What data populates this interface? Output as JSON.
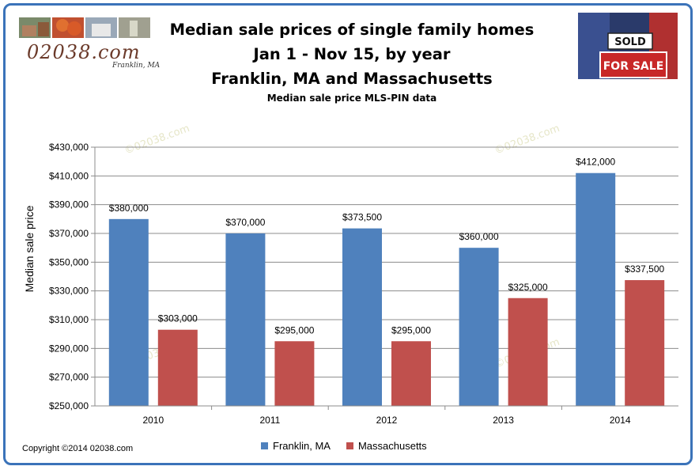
{
  "branding": {
    "logo_text": "02038.com",
    "logo_subtext": "Franklin, MA",
    "sign_text_top": "SOLD",
    "sign_text_bottom": "FOR SALE"
  },
  "header": {
    "title_line1": "Median sale prices of single family homes",
    "title_line2": "Jan 1 - Nov 15, by year",
    "title_line3": "Franklin, MA and Massachusetts",
    "subtitle": "Median sale price MLS-PIN data"
  },
  "footer": {
    "copyright": "Copyright ©2014 02038.com"
  },
  "watermark": "©02038.com",
  "colors": {
    "frame": "#3b73b9",
    "franklin": "#4f81bd",
    "massachusetts": "#c0504d",
    "grid": "#8c8c8c"
  },
  "chart_data": {
    "type": "bar",
    "title": "Median sale prices of single family homes Jan 1 - Nov 15, by year Franklin, MA and Massachusetts",
    "subtitle": "Median sale price MLS-PIN data",
    "xlabel": "",
    "ylabel": "Median sale price",
    "categories": [
      "2010",
      "2011",
      "2012",
      "2013",
      "2014"
    ],
    "series": [
      {
        "name": "Franklin, MA",
        "values": [
          380000,
          370000,
          373500,
          360000,
          412000
        ],
        "labels": [
          "$380,000",
          "$370,000",
          "$373,500",
          "$360,000",
          "$412,000"
        ]
      },
      {
        "name": "Massachusetts",
        "values": [
          303000,
          295000,
          295000,
          325000,
          337500
        ],
        "labels": [
          "$303,000",
          "$295,000",
          "$295,000",
          "$325,000",
          "$337,500"
        ]
      }
    ],
    "ylim": [
      250000,
      430000
    ],
    "yticks": [
      250000,
      270000,
      290000,
      310000,
      330000,
      350000,
      370000,
      390000,
      410000,
      430000
    ],
    "ytick_labels": [
      "$250,000",
      "$270,000",
      "$290,000",
      "$310,000",
      "$330,000",
      "$350,000",
      "$370,000",
      "$390,000",
      "$410,000",
      "$430,000"
    ],
    "grid": true,
    "legend": "bottom"
  }
}
